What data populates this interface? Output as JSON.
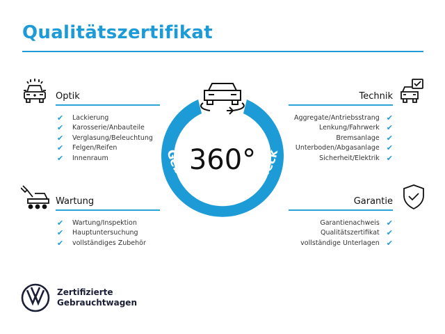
{
  "title": "Qualitätszertifikat",
  "accent": "#1d9bd6",
  "center": {
    "degrees": "360°",
    "ring_text": "Gebrauchtwagen-Check",
    "icon": "car-rotate-icon"
  },
  "sections": {
    "optik": {
      "heading": "Optik",
      "icon": "car-lights-icon",
      "items": [
        "Lackierung",
        "Karosserie/Anbauteile",
        "Verglasung/Beleuchtung",
        "Felgen/Reifen",
        "Innenraum"
      ]
    },
    "wartung": {
      "heading": "Wartung",
      "icon": "service-cart-icon",
      "items": [
        "Wartung/Inspektion",
        "Hauptuntersuchung",
        "vollständiges Zubehör"
      ]
    },
    "technik": {
      "heading": "Technik",
      "icon": "car-check-icon",
      "items": [
        "Aggregate/Antriebsstrang",
        "Lenkung/Fahrwerk",
        "Bremsanlage",
        "Unterboden/Abgasanlage",
        "Sicherheit/Elektrik"
      ]
    },
    "garantie": {
      "heading": "Garantie",
      "icon": "shield-check-icon",
      "items": [
        "Garantienachweis",
        "Qualitätszertifikat",
        "vollständige Unterlagen"
      ]
    }
  },
  "footer": {
    "line1": "Zertifizierte",
    "line2": "Gebrauchtwagen",
    "logo": "vw-logo"
  },
  "check": "✔"
}
